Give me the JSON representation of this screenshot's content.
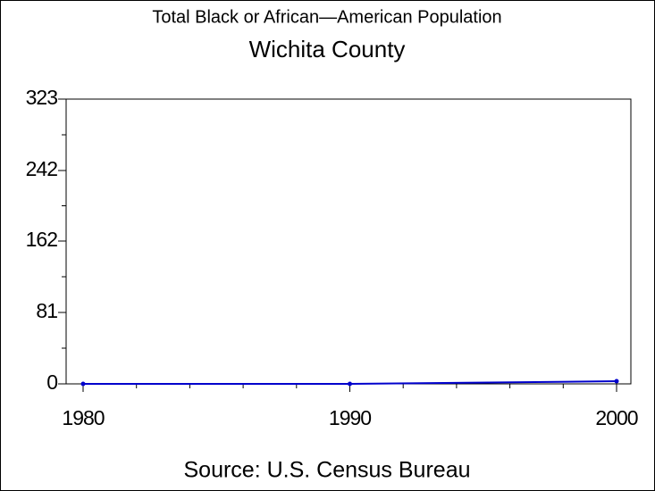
{
  "chart_data": {
    "type": "line",
    "title": "Total Black or African—American Population",
    "subtitle": "Wichita County",
    "source": "Source: U.S. Census Bureau",
    "x": [
      1980,
      1990,
      2000
    ],
    "series": [
      {
        "color": "#0000cc",
        "values": [
          0,
          0,
          3
        ]
      }
    ],
    "xlim": [
      1980,
      2000
    ],
    "xticks": [
      1980,
      1990,
      2000
    ],
    "ylim": [
      0,
      323
    ],
    "yticks": [
      0,
      81,
      162,
      242,
      323
    ]
  }
}
